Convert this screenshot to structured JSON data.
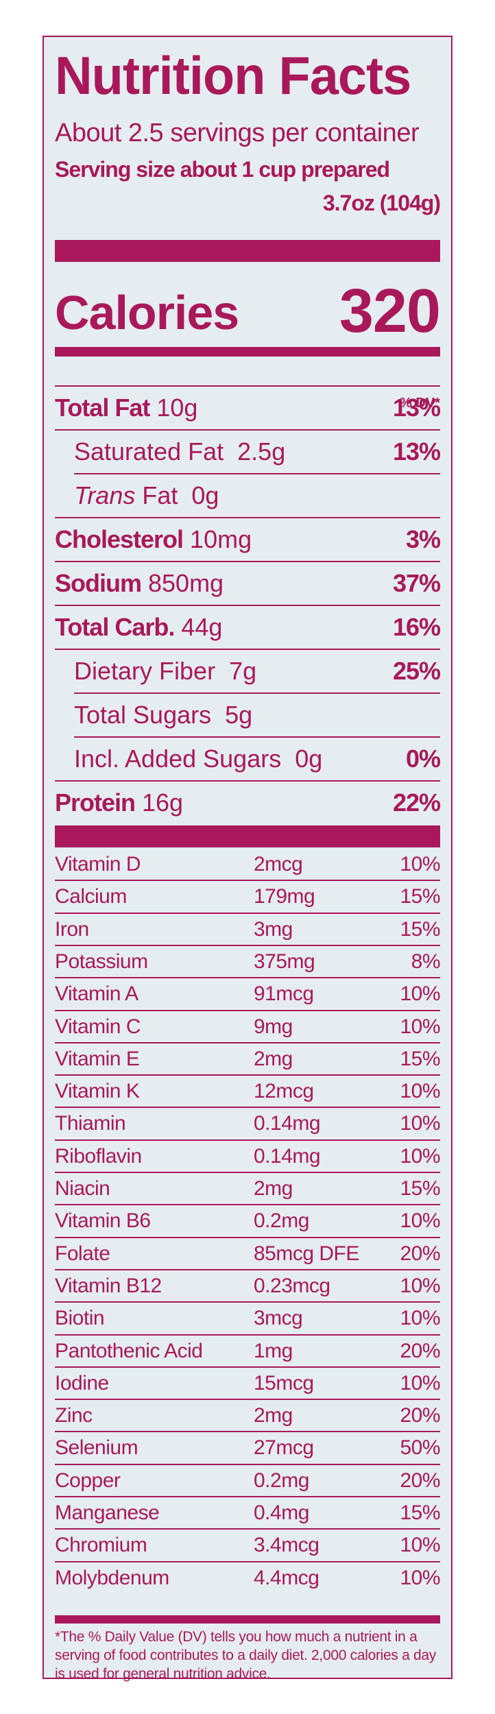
{
  "label": {
    "title": "Nutrition Facts",
    "servings_per_container": "About 2.5 servings per container",
    "serving_size": "Serving size about 1 cup prepared",
    "serving_weight": "3.7oz (104g)",
    "calories_label": "Calories",
    "calories_value": "320",
    "dv_header": "% DV*",
    "nutrients": [
      {
        "bold": "Total Fat",
        "amount": "10g",
        "dv": "13%"
      },
      {
        "name": "Saturated Fat",
        "amount": "2.5g",
        "dv": "13%"
      },
      {
        "italic": "Trans",
        "name": "Fat",
        "amount": "0g",
        "dv": ""
      },
      {
        "bold": "Cholesterol",
        "amount": "10mg",
        "dv": "3%"
      },
      {
        "bold": "Sodium",
        "amount": "850mg",
        "dv": "37%"
      },
      {
        "bold": "Total Carb.",
        "amount": "44g",
        "dv": "16%"
      },
      {
        "name": "Dietary Fiber",
        "amount": "7g",
        "dv": "25%"
      },
      {
        "name": "Total Sugars",
        "amount": "5g",
        "dv": ""
      },
      {
        "name": "Incl. Added Sugars",
        "amount": "0g",
        "dv": "0%"
      },
      {
        "bold": "Protein",
        "amount": "16g",
        "dv": "22%"
      }
    ],
    "vitamins": [
      {
        "name": "Vitamin D",
        "amount": "2mcg",
        "dv": "10%"
      },
      {
        "name": "Calcium",
        "amount": "179mg",
        "dv": "15%"
      },
      {
        "name": "Iron",
        "amount": "3mg",
        "dv": "15%"
      },
      {
        "name": "Potassium",
        "amount": "375mg",
        "dv": "8%"
      },
      {
        "name": "Vitamin A",
        "amount": "91mcg",
        "dv": "10%"
      },
      {
        "name": "Vitamin C",
        "amount": "9mg",
        "dv": "10%"
      },
      {
        "name": "Vitamin E",
        "amount": "2mg",
        "dv": "15%"
      },
      {
        "name": "Vitamin K",
        "amount": "12mcg",
        "dv": "10%"
      },
      {
        "name": "Thiamin",
        "amount": "0.14mg",
        "dv": "10%"
      },
      {
        "name": "Riboflavin",
        "amount": "0.14mg",
        "dv": "10%"
      },
      {
        "name": "Niacin",
        "amount": "2mg",
        "dv": "15%"
      },
      {
        "name": "Vitamin B6",
        "amount": "0.2mg",
        "dv": "10%"
      },
      {
        "name": "Folate",
        "amount": "85mcg DFE",
        "dv": "20%"
      },
      {
        "name": "Vitamin B12",
        "amount": "0.23mcg",
        "dv": "10%"
      },
      {
        "name": "Biotin",
        "amount": "3mcg",
        "dv": "10%"
      },
      {
        "name": "Pantothenic Acid",
        "amount": "1mg",
        "dv": "20%"
      },
      {
        "name": "Iodine",
        "amount": "15mcg",
        "dv": "10%"
      },
      {
        "name": "Zinc",
        "amount": "2mg",
        "dv": "20%"
      },
      {
        "name": "Selenium",
        "amount": "27mcg",
        "dv": "50%"
      },
      {
        "name": "Copper",
        "amount": "0.2mg",
        "dv": "20%"
      },
      {
        "name": "Manganese",
        "amount": "0.4mg",
        "dv": "15%"
      },
      {
        "name": "Chromium",
        "amount": "3.4mcg",
        "dv": "10%"
      },
      {
        "name": "Molybdenum",
        "amount": "4.4mcg",
        "dv": "10%"
      }
    ],
    "footnote": "*The % Daily Value (DV) tells you how much a nutrient in a serving of  food contributes to a daily diet. 2,000 calories a day is used for general nutrition advice.",
    "colors": {
      "ink": "#a8185a",
      "background": "#e6edf1"
    }
  }
}
